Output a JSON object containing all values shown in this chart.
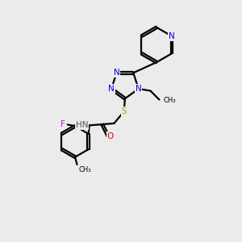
{
  "bg_color": "#ebebeb",
  "bond_color": "#000000",
  "bond_width": 1.6,
  "atom_colors": {
    "N": "#0000ee",
    "O": "#dd0000",
    "S": "#aaaa00",
    "F": "#dd00dd",
    "C": "#000000",
    "H": "#555555"
  },
  "doffset": 0.055,
  "xlim": [
    0,
    10
  ],
  "ylim": [
    0,
    12
  ]
}
